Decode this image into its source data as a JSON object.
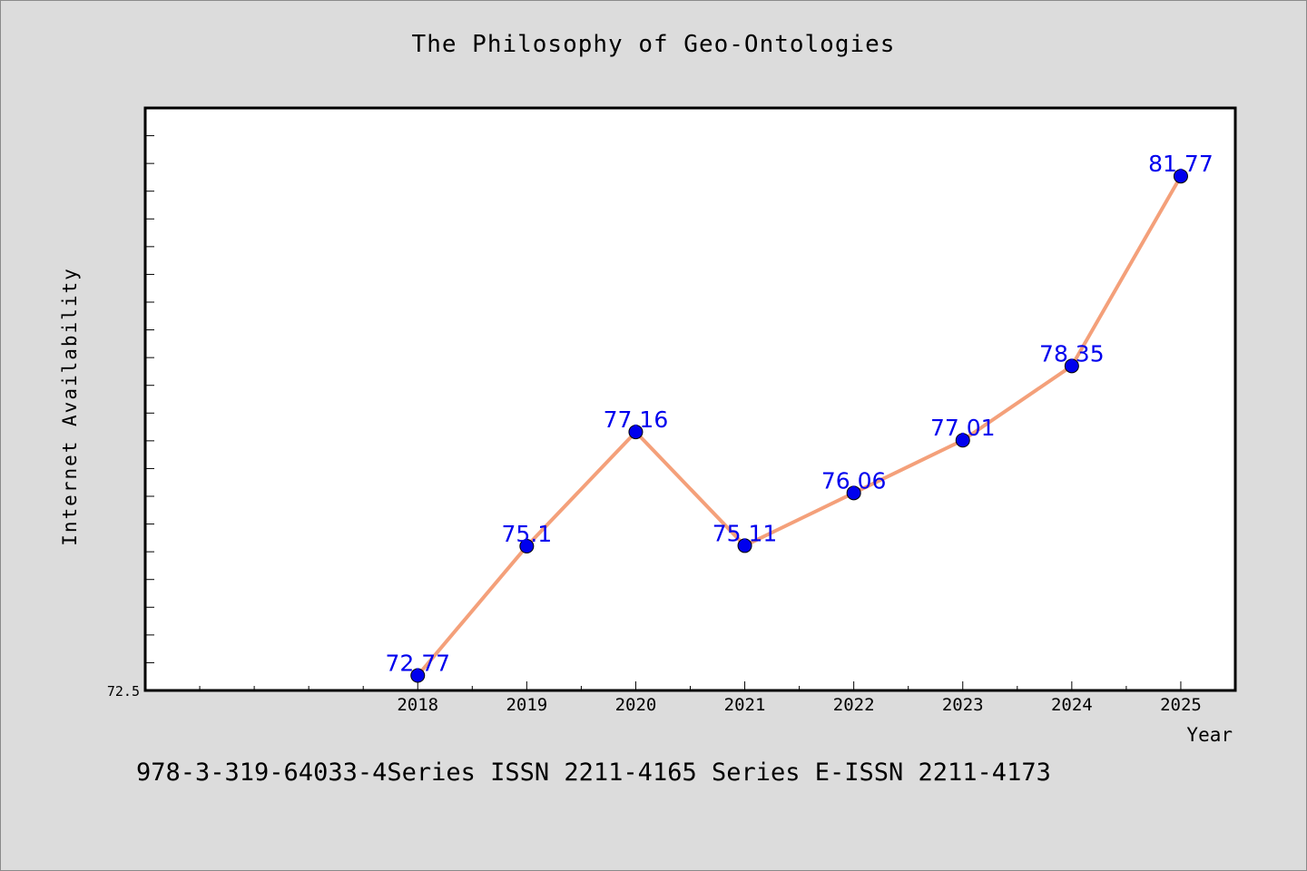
{
  "chart_data": {
    "type": "line",
    "title": "The Philosophy of Geo-Ontologies",
    "xlabel": "Year",
    "ylabel": "Internet Availability",
    "categories": [
      "2018",
      "2019",
      "2020",
      "2021",
      "2022",
      "2023",
      "2024",
      "2025"
    ],
    "x": [
      2018,
      2019,
      2020,
      2021,
      2022,
      2023,
      2024,
      2025
    ],
    "series": [
      {
        "name": "",
        "values": [
          72.77,
          75.1,
          77.16,
          75.11,
          76.06,
          77.01,
          78.35,
          81.77
        ],
        "labels": [
          "72.77",
          "75.1",
          "77.16",
          "75.11",
          "76.06",
          "77.01",
          "78.35",
          "81.77"
        ]
      }
    ],
    "xlim": [
      2015.5,
      2025.5
    ],
    "ylim": [
      72.5,
      83.0
    ],
    "yticks_labeled": [
      "72.5"
    ],
    "grid": false,
    "legend": "none",
    "colors": {
      "line": "#f4a07a",
      "marker": "#0000ee",
      "data_label": "#0000ee",
      "background": "#dcdcdc",
      "plot_area": "#ffffff"
    }
  },
  "footer": {
    "text": "978-3-319-64033-4Series ISSN 2211-4165 Series E-ISSN 2211-4173"
  }
}
